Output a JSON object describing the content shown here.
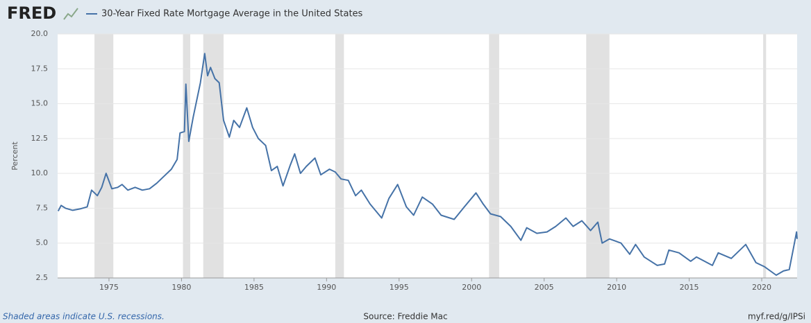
{
  "logo": "FRED",
  "chart_data": {
    "type": "line",
    "y_label": "Percent",
    "footer_left": "Shaded areas indicate U.S. recessions.",
    "footer_center": "Source: Freddie Mac",
    "footer_right": "myf.red/g/IPSi",
    "xlim": [
      1971.46,
      2022.44
    ],
    "xticks": [
      1975,
      1980,
      1985,
      1990,
      1995,
      2000,
      2005,
      2010,
      2015,
      2020
    ],
    "ylim": [
      2.5,
      20
    ],
    "yticks": [
      2.5,
      {
        "value": 5,
        "label": "5.0"
      },
      7.5,
      {
        "value": 10,
        "label": "10.0"
      },
      12.5,
      {
        "value": 15,
        "label": "15.0"
      },
      17.5,
      {
        "value": 20,
        "label": "20.0"
      }
    ],
    "grid": true,
    "recessions": [
      [
        1974.0,
        1975.3
      ],
      [
        1980.1,
        1980.6
      ],
      [
        1981.5,
        1982.9
      ],
      [
        1990.6,
        1991.2
      ],
      [
        2001.2,
        2001.9
      ],
      [
        2007.9,
        2009.5
      ],
      [
        2020.1,
        2020.3
      ]
    ],
    "x": [
      1971.5,
      1971.7,
      1972.0,
      1972.5,
      1973.0,
      1973.5,
      1973.8,
      1974.2,
      1974.5,
      1974.8,
      1975.2,
      1975.6,
      1975.9,
      1976.3,
      1976.8,
      1977.3,
      1977.8,
      1978.3,
      1978.8,
      1979.3,
      1979.7,
      1979.9,
      1980.2,
      1980.3,
      1980.5,
      1980.8,
      1981.0,
      1981.3,
      1981.6,
      1981.8,
      1982.0,
      1982.3,
      1982.6,
      1982.9,
      1983.3,
      1983.6,
      1984.0,
      1984.5,
      1984.9,
      1985.3,
      1985.8,
      1986.2,
      1986.6,
      1987.0,
      1987.5,
      1987.8,
      1988.2,
      1988.6,
      1989.2,
      1989.6,
      1990.2,
      1990.6,
      1991.0,
      1991.5,
      1992.0,
      1992.4,
      1993.0,
      1993.8,
      1994.3,
      1994.9,
      1995.5,
      1996.0,
      1996.6,
      1997.3,
      1997.9,
      1998.8,
      1999.5,
      2000.3,
      2000.8,
      2001.3,
      2002.0,
      2002.7,
      2003.4,
      2003.8,
      2004.5,
      2005.2,
      2005.8,
      2006.5,
      2007.0,
      2007.6,
      2008.2,
      2008.7,
      2009.0,
      2009.5,
      2010.3,
      2010.9,
      2011.3,
      2011.9,
      2012.8,
      2013.3,
      2013.6,
      2014.3,
      2015.1,
      2015.5,
      2016.6,
      2017.0,
      2017.9,
      2018.9,
      2019.6,
      2020.2,
      2021.0,
      2021.5,
      2021.9,
      2022.2,
      2022.4,
      2022.44
    ],
    "series": [
      {
        "name": "30-Year Fixed Rate Mortgage Average in the United States",
        "color": "#4572a7",
        "values": [
          7.3,
          7.7,
          7.5,
          7.35,
          7.45,
          7.6,
          8.8,
          8.4,
          9.0,
          10.0,
          8.9,
          9.0,
          9.2,
          8.8,
          9.0,
          8.8,
          8.9,
          9.3,
          9.8,
          10.3,
          11.0,
          12.9,
          13.0,
          16.4,
          12.3,
          14.0,
          15.0,
          16.5,
          18.6,
          17.0,
          17.6,
          16.8,
          16.5,
          13.8,
          12.6,
          13.8,
          13.3,
          14.7,
          13.3,
          12.5,
          12.0,
          10.2,
          10.5,
          9.1,
          10.6,
          11.4,
          10.0,
          10.5,
          11.1,
          9.9,
          10.3,
          10.1,
          9.6,
          9.5,
          8.4,
          8.8,
          7.8,
          6.8,
          8.2,
          9.2,
          7.6,
          7.0,
          8.3,
          7.8,
          7.0,
          6.7,
          7.6,
          8.6,
          7.8,
          7.1,
          6.9,
          6.2,
          5.2,
          6.1,
          5.7,
          5.8,
          6.2,
          6.8,
          6.2,
          6.6,
          5.9,
          6.5,
          5.0,
          5.3,
          5.0,
          4.2,
          4.9,
          4.0,
          3.4,
          3.5,
          4.5,
          4.3,
          3.7,
          4.0,
          3.4,
          4.3,
          3.9,
          4.9,
          3.6,
          3.3,
          2.7,
          3.0,
          3.1,
          4.7,
          5.8,
          5.3
        ]
      }
    ]
  }
}
